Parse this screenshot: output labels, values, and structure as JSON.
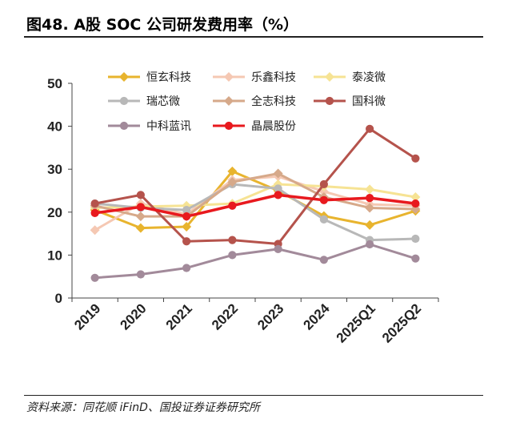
{
  "header": {
    "title": "图48. A股 SOC 公司研发费用率（%）"
  },
  "footer": {
    "source": "资料来源：同花顺 iFinD、国投证券证券研究所"
  },
  "chart_data": {
    "type": "line",
    "title": "图48. A股 SOC 公司研发费用率（%）",
    "xlabel": "",
    "ylabel": "",
    "categories": [
      "2019",
      "2020",
      "2021",
      "2022",
      "2023",
      "2024",
      "2025Q1",
      "2025Q2"
    ],
    "yticks": [
      0,
      10,
      20,
      30,
      40,
      50
    ],
    "ylim": [
      0,
      50
    ],
    "legend_position": "top",
    "series": [
      {
        "name": "恒玄科技",
        "color": "#E8B42E",
        "marker": "diamond",
        "values": [
          20.5,
          16.3,
          16.6,
          29.5,
          25.0,
          19.1,
          17.0,
          20.3
        ]
      },
      {
        "name": "乐鑫科技",
        "color": "#F5C8B3",
        "marker": "diamond",
        "values": [
          15.8,
          22.0,
          19.5,
          27.5,
          28.3,
          24.8,
          21.8,
          21.5
        ]
      },
      {
        "name": "泰凌微",
        "color": "#F6E394",
        "marker": "diamond",
        "values": [
          21.0,
          21.3,
          21.5,
          22.0,
          26.5,
          26.0,
          25.3,
          23.5
        ]
      },
      {
        "name": "瑞芯微",
        "color": "#B8B8B8",
        "marker": "circle",
        "values": [
          22.0,
          21.0,
          20.5,
          26.5,
          25.5,
          18.3,
          13.5,
          13.8
        ]
      },
      {
        "name": "全志科技",
        "color": "#D6A98A",
        "marker": "diamond",
        "values": [
          21.5,
          19.0,
          19.0,
          27.0,
          29.0,
          23.5,
          21.0,
          20.7
        ]
      },
      {
        "name": "国科微",
        "color": "#B5534C",
        "marker": "circle",
        "values": [
          22.0,
          24.0,
          13.2,
          13.5,
          12.6,
          26.5,
          39.4,
          32.5
        ]
      },
      {
        "name": "中科蓝讯",
        "color": "#A28A9A",
        "marker": "circle",
        "values": [
          4.7,
          5.5,
          7.0,
          10.0,
          11.4,
          8.9,
          12.5,
          9.2
        ]
      },
      {
        "name": "晶晨股份",
        "color": "#E8191E",
        "marker": "circle",
        "values": [
          19.8,
          21.2,
          19.0,
          21.5,
          24.0,
          22.8,
          23.3,
          22.0
        ]
      }
    ]
  }
}
